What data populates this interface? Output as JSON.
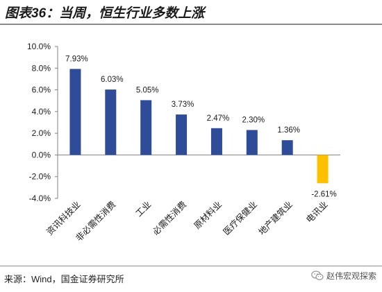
{
  "header": {
    "title": "图表36：当周，恒生行业多数上涨"
  },
  "footer": {
    "source": "来源：Wind，国金证券研究所",
    "watermark": "赵伟宏观探索"
  },
  "colors": {
    "positive_bar": "#2e4c97",
    "negative_bar": "#ffc000",
    "axis": "#7f7f7f",
    "text": "#1a1a1a"
  },
  "icons": {
    "watermark": "wechat-icon"
  },
  "chart_data": {
    "type": "bar",
    "title": "",
    "xlabel": "",
    "ylabel": "",
    "categories": [
      "资讯科技业",
      "非必需性消费",
      "工业",
      "必需性消费",
      "原材料业",
      "医疗保健业",
      "地产建筑业",
      "电讯业"
    ],
    "values": [
      7.93,
      6.03,
      5.05,
      3.73,
      2.47,
      2.3,
      1.36,
      -2.61
    ],
    "data_labels": [
      "7.93%",
      "6.03%",
      "5.05%",
      "3.73%",
      "2.47%",
      "2.30%",
      "1.36%",
      "-2.61%"
    ],
    "ylim": [
      -4,
      10
    ],
    "yticks": [
      10,
      8,
      6,
      4,
      2,
      0,
      -2,
      -4
    ],
    "ytick_labels": [
      "10.0%",
      "8.0%",
      "6.0%",
      "4.0%",
      "2.0%",
      "0.0%",
      "-2.0%",
      "-4.0%"
    ],
    "grid": false,
    "legend": "none"
  }
}
